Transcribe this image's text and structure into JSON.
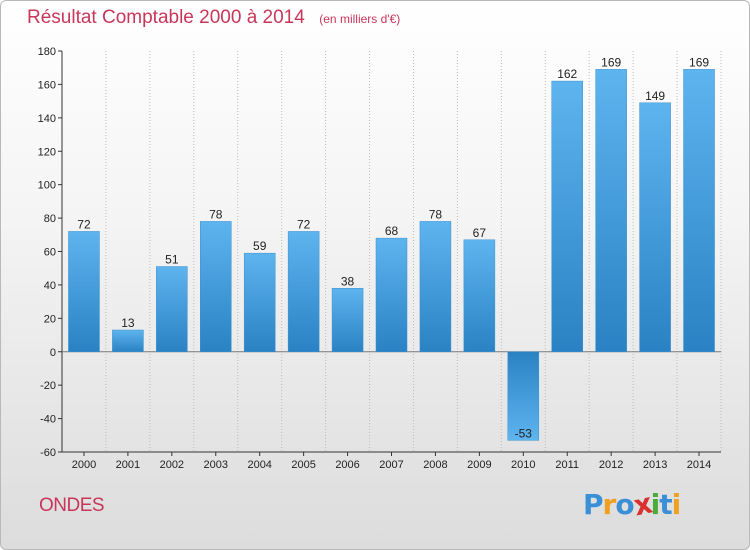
{
  "header": {
    "title": "Résultat Comptable 2000 à 2014",
    "subtitle": "(en milliers d'€)"
  },
  "footer": {
    "place": "ONDES",
    "logo": {
      "text": "Proxiti",
      "letters": [
        {
          "ch": "P",
          "color": "#3a8fd6"
        },
        {
          "ch": "r",
          "color": "#f0a020"
        },
        {
          "ch": "o",
          "color": "#3a8fd6"
        },
        {
          "ch": "x",
          "color": "#d93030"
        },
        {
          "ch": "i",
          "color": "#4aaa3a"
        },
        {
          "ch": "t",
          "color": "#3a8fd6"
        },
        {
          "ch": "i",
          "color": "#f0a020"
        }
      ]
    }
  },
  "colors": {
    "bar_light": "#5eb4ee",
    "bar_dark": "#2a82c4",
    "axis": "#333333",
    "grid": "#bcbcbc"
  },
  "chart_data": {
    "type": "bar",
    "title": "Résultat Comptable 2000 à 2014",
    "subtitle": "(en milliers d'€)",
    "categories": [
      "2000",
      "2001",
      "2002",
      "2003",
      "2004",
      "2005",
      "2006",
      "2007",
      "2008",
      "2009",
      "2010",
      "2011",
      "2012",
      "2013",
      "2014"
    ],
    "values": [
      72,
      13,
      51,
      78,
      59,
      72,
      38,
      68,
      78,
      67,
      -53,
      162,
      169,
      149,
      169
    ],
    "yticks": [
      -60,
      -40,
      -20,
      0,
      20,
      40,
      60,
      80,
      100,
      120,
      140,
      160,
      180
    ],
    "ylim": [
      -60,
      180
    ],
    "grid": "vertical dotted"
  }
}
